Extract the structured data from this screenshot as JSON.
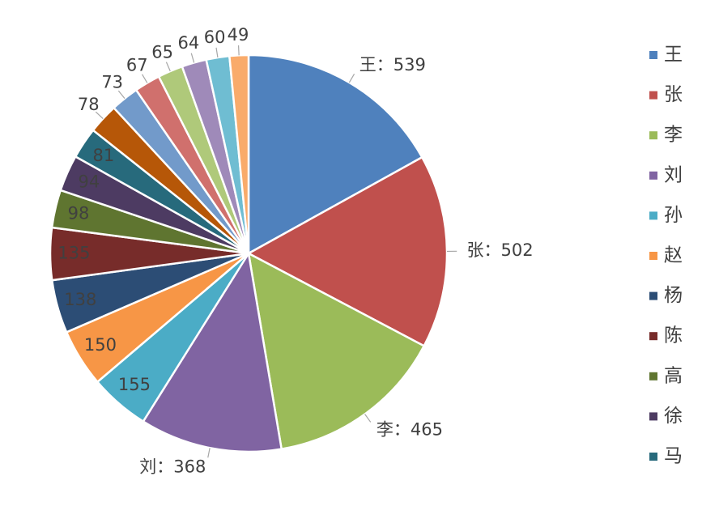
{
  "chart_data": {
    "type": "pie",
    "categories": [
      "王",
      "张",
      "李",
      "刘",
      "孙",
      "赵",
      "杨",
      "陈",
      "高",
      "徐",
      "马",
      null,
      null,
      null,
      null,
      null,
      null,
      null
    ],
    "values": [
      539,
      502,
      465,
      368,
      155,
      150,
      138,
      135,
      98,
      94,
      81,
      78,
      73,
      67,
      65,
      64,
      60,
      49
    ],
    "colors": [
      "#4f81bd",
      "#c0504d",
      "#9bbb59",
      "#8064a2",
      "#4bacc6",
      "#f79646",
      "#2c4d75",
      "#772c2a",
      "#5f7530",
      "#4d3b62",
      "#276a7c",
      "#b65708",
      "#729aca",
      "#d0706d",
      "#afc97a",
      "#9f8ab9",
      "#6fbdd2",
      "#f9ab6b"
    ],
    "label_separator": "：",
    "legend": "right"
  }
}
